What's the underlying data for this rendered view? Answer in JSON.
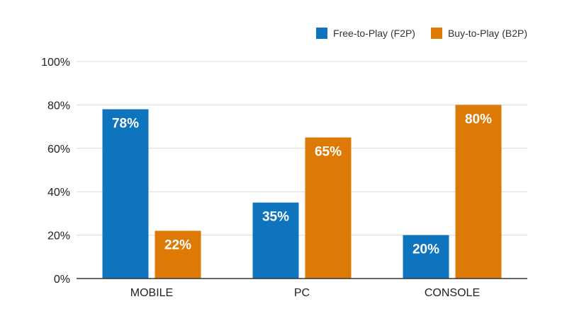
{
  "chart_data": {
    "type": "bar",
    "categories": [
      "MOBILE",
      "PC",
      "CONSOLE"
    ],
    "series": [
      {
        "name": "Free-to-Play (F2P)",
        "values": [
          78,
          35,
          20
        ],
        "labels": [
          "78%",
          "35%",
          "20%"
        ],
        "color": "#0E74BE"
      },
      {
        "name": "Buy-to-Play (B2P)",
        "values": [
          22,
          65,
          80
        ],
        "labels": [
          "22%",
          "65%",
          "80%"
        ],
        "color": "#DD7A05"
      }
    ],
    "ylim": [
      0,
      100
    ],
    "yticks": [
      0,
      20,
      40,
      60,
      80,
      100
    ],
    "ytick_labels": [
      "0%",
      "20%",
      "40%",
      "60%",
      "80%",
      "100%"
    ],
    "grid": true,
    "legend_position": "top-right",
    "gridline_color": "#D9D9D9",
    "axis_color": "#333333"
  }
}
